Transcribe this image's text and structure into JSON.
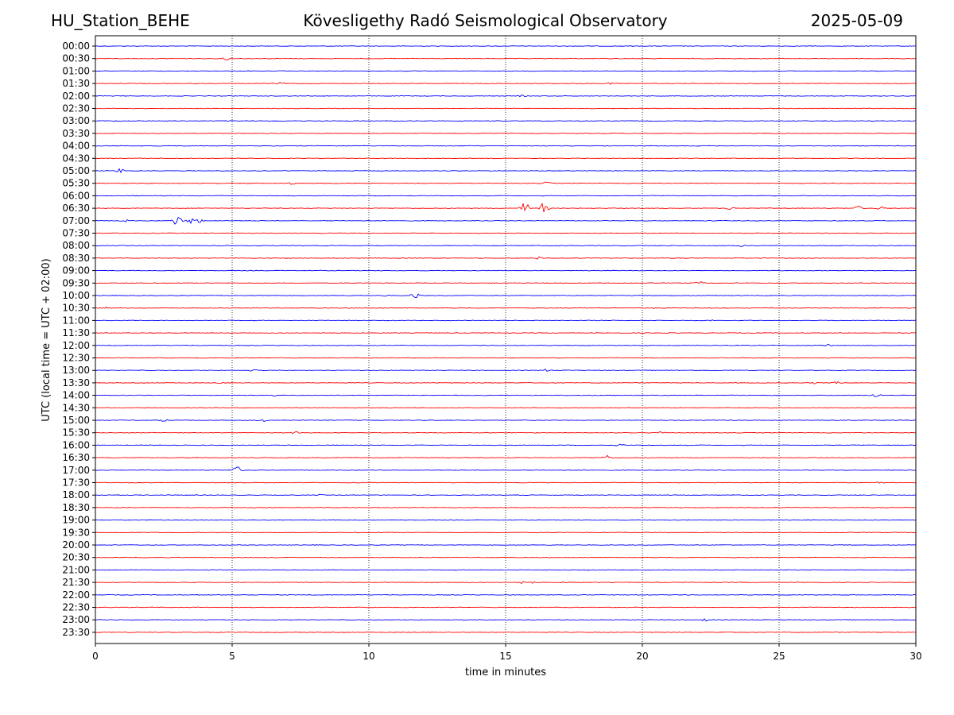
{
  "header": {
    "station": "HU_Station_BEHE",
    "observatory": "Kövesligethy Radó Seismological Observatory",
    "date": "2025-05-09"
  },
  "chart_data": {
    "type": "line",
    "title": "Kövesligethy Radó Seismological Observatory",
    "xlabel": "time in minutes",
    "ylabel": "UTC (local time = UTC + 02:00)",
    "xlim": [
      0,
      30
    ],
    "xticks": [
      0,
      5,
      10,
      15,
      20,
      25,
      30
    ],
    "vertical_gridlines_at": [
      5,
      10,
      15,
      20,
      25
    ],
    "trace_colors": [
      "#0000ff",
      "#ff0000"
    ],
    "rows": [
      {
        "label": "00:00",
        "events": []
      },
      {
        "label": "00:30",
        "events": [
          {
            "t": 4.8,
            "amp": 3
          }
        ]
      },
      {
        "label": "01:00",
        "events": []
      },
      {
        "label": "01:30",
        "events": [
          {
            "t": 6.8,
            "amp": 2
          },
          {
            "t": 18.9,
            "amp": 2
          }
        ]
      },
      {
        "label": "02:00",
        "events": [
          {
            "t": 15.6,
            "amp": 1.5
          }
        ]
      },
      {
        "label": "02:30",
        "events": []
      },
      {
        "label": "03:00",
        "events": []
      },
      {
        "label": "03:30",
        "events": []
      },
      {
        "label": "04:00",
        "events": []
      },
      {
        "label": "04:30",
        "events": []
      },
      {
        "label": "05:00",
        "events": [
          {
            "t": 0.9,
            "amp": 3
          }
        ]
      },
      {
        "label": "05:30",
        "events": [
          {
            "t": 7.2,
            "amp": 2
          },
          {
            "t": 16.5,
            "amp": 2
          }
        ]
      },
      {
        "label": "06:00",
        "events": []
      },
      {
        "label": "06:30",
        "events": [
          {
            "t": 15.7,
            "amp": 9
          },
          {
            "t": 16.4,
            "amp": 8
          },
          {
            "t": 23.2,
            "amp": 2
          },
          {
            "t": 27.9,
            "amp": 3
          },
          {
            "t": 28.7,
            "amp": 2.5
          }
        ]
      },
      {
        "label": "07:00",
        "events": [
          {
            "t": 1.1,
            "amp": 2.5
          },
          {
            "t": 3.0,
            "amp": 8
          },
          {
            "t": 3.5,
            "amp": 5
          },
          {
            "t": 3.8,
            "amp": 3
          }
        ]
      },
      {
        "label": "07:30",
        "events": []
      },
      {
        "label": "08:00",
        "events": [
          {
            "t": 23.6,
            "amp": 1.5
          }
        ]
      },
      {
        "label": "08:30",
        "events": [
          {
            "t": 16.2,
            "amp": 2
          }
        ]
      },
      {
        "label": "09:00",
        "events": []
      },
      {
        "label": "09:30",
        "events": [
          {
            "t": 22.1,
            "amp": 2.5
          }
        ]
      },
      {
        "label": "10:00",
        "events": [
          {
            "t": 10.6,
            "amp": 1.5
          },
          {
            "t": 11.7,
            "amp": 5
          }
        ]
      },
      {
        "label": "10:30",
        "events": [
          {
            "t": 0.4,
            "amp": 1.5
          },
          {
            "t": 20.5,
            "amp": 1.5
          }
        ]
      },
      {
        "label": "11:00",
        "events": [
          {
            "t": 22.6,
            "amp": 1.5
          }
        ]
      },
      {
        "label": "11:30",
        "events": []
      },
      {
        "label": "12:00",
        "events": [
          {
            "t": 26.8,
            "amp": 2
          }
        ]
      },
      {
        "label": "12:30",
        "events": []
      },
      {
        "label": "13:00",
        "events": [
          {
            "t": 5.8,
            "amp": 2
          },
          {
            "t": 16.5,
            "amp": 2
          }
        ]
      },
      {
        "label": "13:30",
        "events": [
          {
            "t": 4.6,
            "amp": 1.5
          },
          {
            "t": 12.7,
            "amp": 2
          },
          {
            "t": 26.3,
            "amp": 1.5
          },
          {
            "t": 27.1,
            "amp": 2
          }
        ]
      },
      {
        "label": "14:00",
        "events": [
          {
            "t": 6.5,
            "amp": 2
          },
          {
            "t": 28.6,
            "amp": 3
          }
        ]
      },
      {
        "label": "14:30",
        "events": []
      },
      {
        "label": "15:00",
        "events": [
          {
            "t": 2.5,
            "amp": 2.5
          },
          {
            "t": 6.1,
            "amp": 2.5
          }
        ]
      },
      {
        "label": "15:30",
        "events": [
          {
            "t": 7.3,
            "amp": 2
          },
          {
            "t": 20.7,
            "amp": 2
          }
        ]
      },
      {
        "label": "16:00",
        "events": [
          {
            "t": 19.2,
            "amp": 2
          }
        ]
      },
      {
        "label": "16:30",
        "events": [
          {
            "t": 18.7,
            "amp": 4
          }
        ]
      },
      {
        "label": "17:00",
        "events": [
          {
            "t": 5.2,
            "amp": 5
          }
        ]
      },
      {
        "label": "17:30",
        "events": [
          {
            "t": 28.7,
            "amp": 1.5
          }
        ]
      },
      {
        "label": "18:00",
        "events": [
          {
            "t": 8.2,
            "amp": 1
          }
        ]
      },
      {
        "label": "18:30",
        "events": []
      },
      {
        "label": "19:00",
        "events": []
      },
      {
        "label": "19:30",
        "events": []
      },
      {
        "label": "20:00",
        "events": []
      },
      {
        "label": "20:30",
        "events": []
      },
      {
        "label": "21:00",
        "events": []
      },
      {
        "label": "21:30",
        "events": [
          {
            "t": 15.5,
            "amp": 2.5
          },
          {
            "t": 16.0,
            "amp": 1.5
          },
          {
            "t": 17.2,
            "amp": 1.5
          }
        ]
      },
      {
        "label": "22:00",
        "events": []
      },
      {
        "label": "22:30",
        "events": []
      },
      {
        "label": "23:00",
        "events": [
          {
            "t": 22.3,
            "amp": 2
          }
        ]
      },
      {
        "label": "23:30",
        "events": []
      }
    ]
  }
}
